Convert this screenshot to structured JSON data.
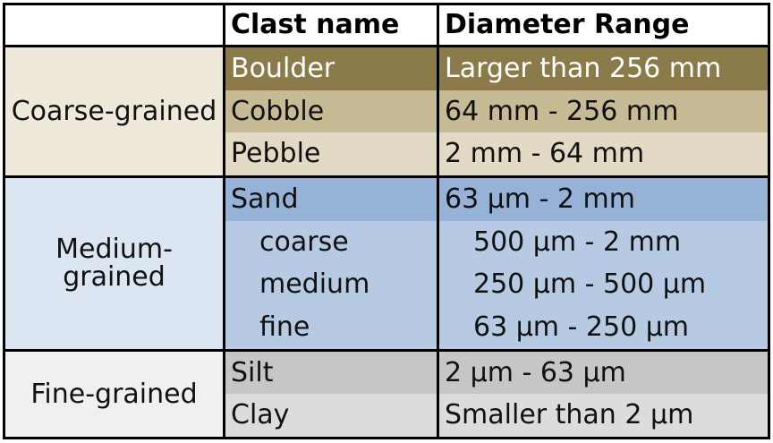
{
  "header": {
    "group": "",
    "name": "Clast name",
    "range": "Diameter Range"
  },
  "groups": [
    {
      "label": "Coarse-grained",
      "bg": "#efe9dc",
      "rows": [
        {
          "name": "Boulder",
          "range": "Larger than 256 mm",
          "bg": "#8c7b4a",
          "text_color": "#ffffff"
        },
        {
          "name": "Cobble",
          "range": "64 mm - 256 mm",
          "bg": "#c7bb96",
          "text_color": "#111111"
        },
        {
          "name": "Pebble",
          "range": "2 mm - 64 mm",
          "bg": "#e3dac6",
          "text_color": "#111111"
        }
      ]
    },
    {
      "label": "Medium-grained",
      "label_lines": [
        "Medium-",
        "grained"
      ],
      "bg": "#dbe6f2",
      "rows": [
        {
          "name": "Sand",
          "range": "63 µm - 2 mm",
          "bg": "#96b2d6",
          "text_color": "#111111"
        },
        {
          "name": "coarse",
          "range": "500 µm - 2 mm",
          "bg": "#b6cae4",
          "text_color": "#111111"
        },
        {
          "name": "medium",
          "range": "250 µm - 500 µm",
          "bg": "#b6cae4",
          "text_color": "#111111"
        },
        {
          "name": "fine",
          "range": "63 µm - 250 µm",
          "bg": "#b6cae4",
          "text_color": "#111111"
        }
      ]
    },
    {
      "label": "Fine-grained",
      "bg": "#f0f0f0",
      "rows": [
        {
          "name": "Silt",
          "range": "2 µm - 63 µm",
          "bg": "#c6c6c6",
          "text_color": "#111111"
        },
        {
          "name": "Clay",
          "range": "Smaller than 2 µm",
          "bg": "#dcdcdc",
          "text_color": "#111111"
        }
      ]
    }
  ]
}
